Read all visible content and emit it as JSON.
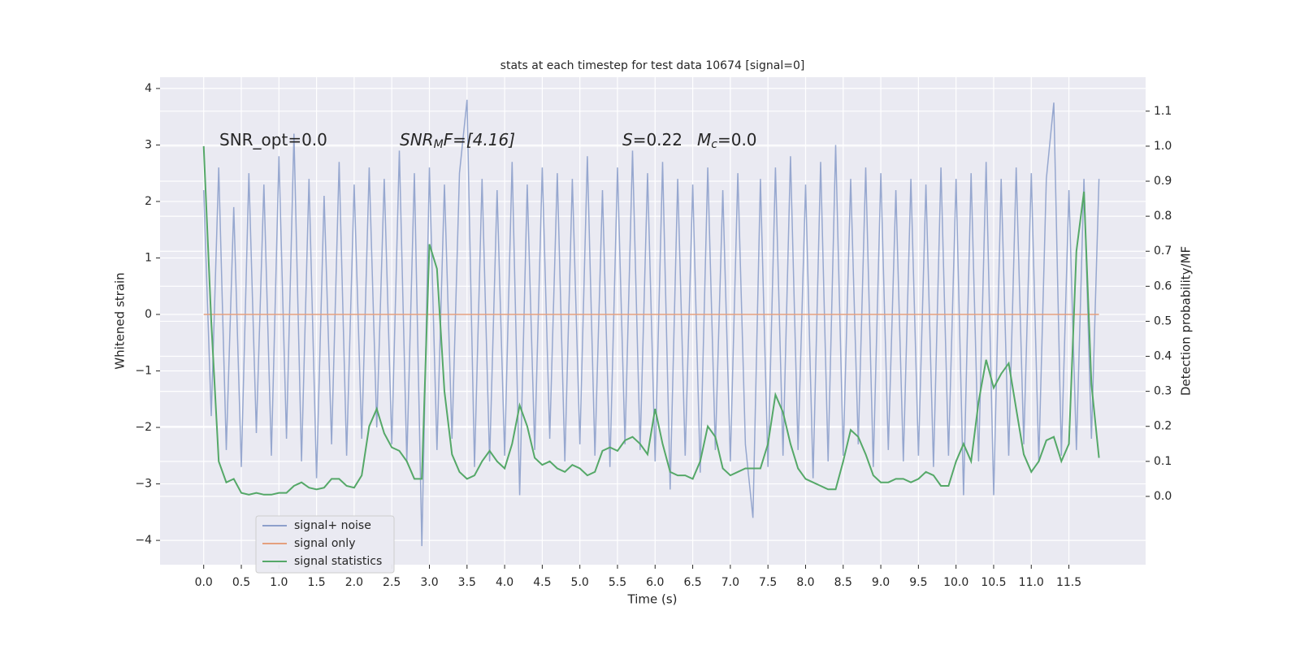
{
  "chart_data": {
    "type": "line",
    "title": "stats at each timestep for test data 10674 [signal=0]",
    "xlabel": "Time (s)",
    "ylabel": "Whitened strain",
    "y2label": "Detection probability/MF",
    "annotations": [
      [
        "SNR_opt=0.0"
      ],
      [
        "SNR",
        "M",
        "F=[4.16]"
      ],
      [
        "S",
        "=0.22"
      ],
      [
        "M",
        "c",
        "=0.0"
      ]
    ],
    "legend": "lower left",
    "grid": true,
    "xlim": [
      -0.58,
      12.52
    ],
    "ylim": [
      -4.43,
      4.2
    ],
    "y2lim": [
      -0.195,
      1.197
    ],
    "xticks": [
      {
        "value": 0,
        "label": "0.0"
      },
      {
        "value": 0.5,
        "label": "0.5"
      },
      {
        "value": 1,
        "label": "1.0"
      },
      {
        "value": 1.5,
        "label": "1.5"
      },
      {
        "value": 2,
        "label": "2.0"
      },
      {
        "value": 2.5,
        "label": "2.5"
      },
      {
        "value": 3,
        "label": "3.0"
      },
      {
        "value": 3.5,
        "label": "3.5"
      },
      {
        "value": 4,
        "label": "4.0"
      },
      {
        "value": 4.5,
        "label": "4.5"
      },
      {
        "value": 5,
        "label": "5.0"
      },
      {
        "value": 5.5,
        "label": "5.5"
      },
      {
        "value": 6,
        "label": "6.0"
      },
      {
        "value": 6.5,
        "label": "6.5"
      },
      {
        "value": 7,
        "label": "7.0"
      },
      {
        "value": 7.5,
        "label": "7.5"
      },
      {
        "value": 8,
        "label": "8.0"
      },
      {
        "value": 8.5,
        "label": "8.5"
      },
      {
        "value": 9,
        "label": "9.0"
      },
      {
        "value": 9.5,
        "label": "9.5"
      },
      {
        "value": 10,
        "label": "10.0"
      },
      {
        "value": 10.5,
        "label": "10.5"
      },
      {
        "value": 11,
        "label": "11.0"
      },
      {
        "value": 11.5,
        "label": "11.5"
      }
    ],
    "yticks": [
      {
        "value": -4,
        "label": "−4"
      },
      {
        "value": -3,
        "label": "−3"
      },
      {
        "value": -2,
        "label": "−2"
      },
      {
        "value": -1,
        "label": "−1"
      },
      0,
      1,
      2,
      3,
      4
    ],
    "y2ticks": [
      {
        "value": 0,
        "label": "0.0"
      },
      0.1,
      0.2,
      0.3,
      0.4,
      0.5,
      0.6,
      0.7,
      0.8,
      0.9,
      {
        "value": 1,
        "label": "1.0"
      },
      1.1
    ],
    "x": [
      0,
      0.1,
      0.2,
      0.3,
      0.4,
      0.5,
      0.6,
      0.7,
      0.8,
      0.9,
      1,
      1.1,
      1.2,
      1.3,
      1.4,
      1.5,
      1.6,
      1.7,
      1.8,
      1.9,
      2,
      2.1,
      2.2,
      2.3,
      2.4,
      2.5,
      2.6,
      2.7,
      2.8,
      2.9,
      3,
      3.1,
      3.2,
      3.3,
      3.4,
      3.5,
      3.6,
      3.7,
      3.8,
      3.9,
      4,
      4.1,
      4.2,
      4.3,
      4.4,
      4.5,
      4.6,
      4.7,
      4.8,
      4.9,
      5,
      5.1,
      5.2,
      5.3,
      5.4,
      5.5,
      5.6,
      5.7,
      5.8,
      5.9,
      6,
      6.1,
      6.2,
      6.3,
      6.4,
      6.5,
      6.6,
      6.7,
      6.8,
      6.9,
      7,
      7.1,
      7.2,
      7.3,
      7.4,
      7.5,
      7.6,
      7.7,
      7.8,
      7.9,
      8,
      8.1,
      8.2,
      8.3,
      8.4,
      8.5,
      8.6,
      8.7,
      8.8,
      8.9,
      9,
      9.1,
      9.2,
      9.3,
      9.4,
      9.5,
      9.6,
      9.7,
      9.8,
      9.9,
      10,
      10.1,
      10.2,
      10.3,
      10.4,
      10.5,
      10.6,
      10.7,
      10.8,
      10.9,
      11,
      11.1,
      11.2,
      11.3,
      11.4,
      11.5,
      11.6,
      11.7,
      11.8,
      11.9
    ],
    "series": [
      {
        "name": "signal+ noise",
        "color": "#8da0cb",
        "axis": "y",
        "values": [
          2.2,
          -1.8,
          2.6,
          -2.4,
          1.9,
          -2.7,
          2.5,
          -2.1,
          2.3,
          -2.5,
          2.8,
          -2.2,
          3.2,
          -2.6,
          2.4,
          -2.9,
          2.1,
          -2.3,
          2.7,
          -2.5,
          2.3,
          -2.2,
          2.6,
          -2.0,
          2.4,
          -2.3,
          2.9,
          -2.6,
          2.5,
          -4.1,
          2.6,
          -2.4,
          2.3,
          -2.2,
          2.5,
          3.8,
          -2.7,
          2.4,
          -2.6,
          2.2,
          -2.5,
          2.7,
          -3.2,
          2.3,
          -2.4,
          2.6,
          -2.2,
          2.5,
          -2.6,
          2.4,
          -2.3,
          2.8,
          -2.5,
          2.2,
          -2.7,
          2.6,
          -2.3,
          2.9,
          -2.4,
          2.5,
          -2.6,
          2.7,
          -3.1,
          2.4,
          -2.5,
          2.3,
          -2.8,
          2.6,
          -2.4,
          2.2,
          -2.6,
          2.5,
          -2.3,
          -3.6,
          2.4,
          -2.7,
          2.6,
          -2.5,
          2.8,
          -2.4,
          2.3,
          -2.9,
          2.7,
          -2.6,
          3.0,
          -2.5,
          2.4,
          -2.3,
          2.6,
          -2.7,
          2.5,
          -2.4,
          2.2,
          -2.6,
          2.4,
          -2.5,
          2.3,
          -2.7,
          2.6,
          -2.5,
          2.4,
          -3.2,
          2.5,
          -2.6,
          2.7,
          -3.2,
          2.4,
          -2.5,
          2.6,
          -2.3,
          2.5,
          -2.6,
          2.4,
          3.75,
          -2.5,
          2.2,
          -2.4,
          2.4,
          -2.2,
          2.4
        ]
      },
      {
        "name": "signal only",
        "color": "#e5a07e",
        "axis": "y",
        "values": [
          0,
          0,
          0,
          0,
          0,
          0,
          0,
          0,
          0,
          0,
          0,
          0,
          0,
          0,
          0,
          0,
          0,
          0,
          0,
          0,
          0,
          0,
          0,
          0,
          0,
          0,
          0,
          0,
          0,
          0,
          0,
          0,
          0,
          0,
          0,
          0,
          0,
          0,
          0,
          0,
          0,
          0,
          0,
          0,
          0,
          0,
          0,
          0,
          0,
          0,
          0,
          0,
          0,
          0,
          0,
          0,
          0,
          0,
          0,
          0,
          0,
          0,
          0,
          0,
          0,
          0,
          0,
          0,
          0,
          0,
          0,
          0,
          0,
          0,
          0,
          0,
          0,
          0,
          0,
          0,
          0,
          0,
          0,
          0,
          0,
          0,
          0,
          0,
          0,
          0,
          0,
          0,
          0,
          0,
          0,
          0,
          0,
          0,
          0,
          0,
          0,
          0,
          0,
          0,
          0,
          0,
          0,
          0,
          0,
          0,
          0,
          0,
          0,
          0,
          0,
          0,
          0,
          0,
          0,
          0
        ]
      },
      {
        "name": "signal statistics",
        "color": "#55a868",
        "axis": "y2",
        "values": [
          1.0,
          0.5,
          0.1,
          0.04,
          0.05,
          0.01,
          0.005,
          0.01,
          0.005,
          0.005,
          0.01,
          0.01,
          0.03,
          0.04,
          0.025,
          0.02,
          0.025,
          0.05,
          0.05,
          0.03,
          0.025,
          0.06,
          0.2,
          0.25,
          0.18,
          0.14,
          0.13,
          0.1,
          0.05,
          0.05,
          0.72,
          0.65,
          0.3,
          0.12,
          0.07,
          0.05,
          0.06,
          0.1,
          0.13,
          0.1,
          0.08,
          0.15,
          0.26,
          0.2,
          0.11,
          0.09,
          0.1,
          0.08,
          0.07,
          0.09,
          0.08,
          0.06,
          0.07,
          0.13,
          0.14,
          0.13,
          0.16,
          0.17,
          0.15,
          0.12,
          0.25,
          0.15,
          0.07,
          0.06,
          0.06,
          0.05,
          0.1,
          0.2,
          0.17,
          0.08,
          0.06,
          0.07,
          0.08,
          0.08,
          0.08,
          0.15,
          0.29,
          0.24,
          0.15,
          0.08,
          0.05,
          0.04,
          0.03,
          0.02,
          0.02,
          0.1,
          0.19,
          0.17,
          0.12,
          0.06,
          0.04,
          0.04,
          0.05,
          0.05,
          0.04,
          0.05,
          0.07,
          0.06,
          0.03,
          0.03,
          0.1,
          0.15,
          0.1,
          0.27,
          0.39,
          0.31,
          0.35,
          0.38,
          0.25,
          0.12,
          0.07,
          0.1,
          0.16,
          0.17,
          0.1,
          0.15,
          0.7,
          0.87,
          0.32,
          0.11
        ]
      }
    ]
  }
}
